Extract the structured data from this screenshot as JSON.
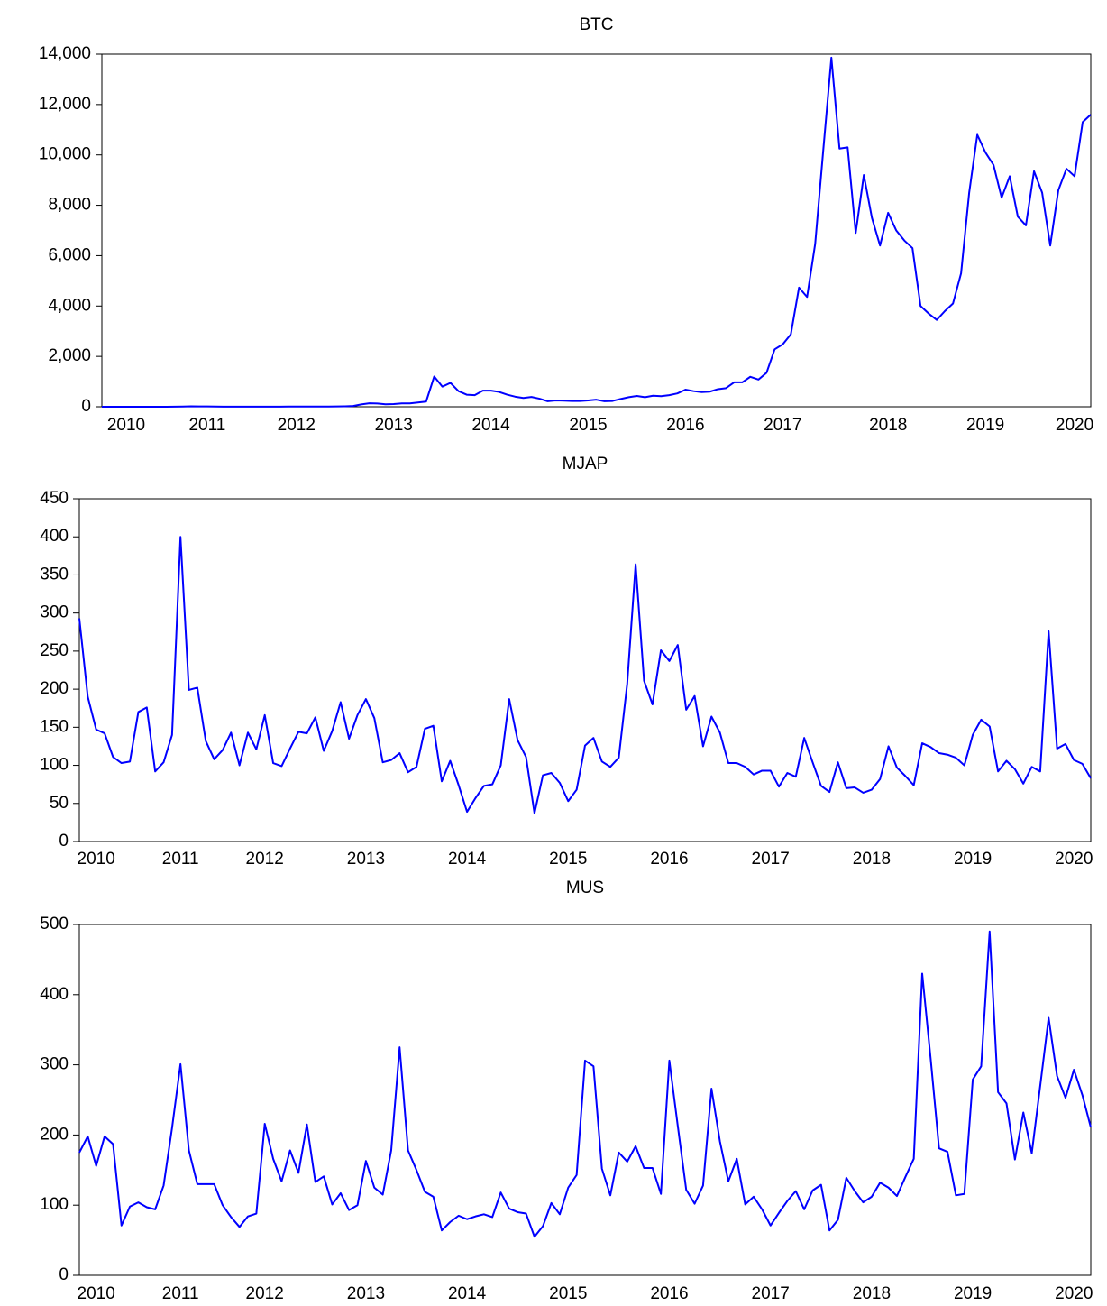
{
  "chart_data": [
    {
      "type": "line",
      "title": "BTC",
      "color": "#0000ff",
      "ylim": [
        0,
        14000
      ],
      "yticks": [
        0,
        {
          "value": 2000,
          "label": "2,000"
        },
        {
          "value": 4000,
          "label": "4,000"
        },
        {
          "value": 6000,
          "label": "6,000"
        },
        {
          "value": 8000,
          "label": "8,000"
        },
        {
          "value": 10000,
          "label": "10,000"
        },
        {
          "value": 12000,
          "label": "12,000"
        },
        {
          "value": 14000,
          "label": "14,000"
        }
      ],
      "categories": [
        null,
        null,
        null,
        "2010",
        null,
        null,
        null,
        null,
        null,
        null,
        null,
        null,
        null,
        "2011",
        null,
        null,
        null,
        null,
        null,
        null,
        null,
        null,
        null,
        null,
        "2012",
        null,
        null,
        null,
        null,
        null,
        null,
        null,
        null,
        null,
        null,
        null,
        "2013",
        null,
        null,
        null,
        null,
        null,
        null,
        null,
        null,
        null,
        null,
        null,
        "2014",
        null,
        null,
        null,
        null,
        null,
        null,
        null,
        null,
        null,
        null,
        null,
        "2015",
        null,
        null,
        null,
        null,
        null,
        null,
        null,
        null,
        null,
        null,
        null,
        "2016",
        null,
        null,
        null,
        null,
        null,
        null,
        null,
        null,
        null,
        null,
        null,
        "2017",
        null,
        null,
        null,
        null,
        null,
        null,
        null,
        null,
        null,
        null,
        null,
        null,
        "2018",
        null,
        null,
        null,
        null,
        null,
        null,
        null,
        null,
        null,
        null,
        null,
        "2019",
        null,
        null,
        null,
        null,
        null,
        null,
        null,
        null,
        null,
        null,
        "2020",
        null,
        null
      ],
      "values": [
        0.07,
        0.06,
        0.06,
        0.2,
        0.3,
        0.3,
        0.5,
        0.9,
        0.8,
        3.5,
        9,
        17,
        14,
        13,
        8,
        5,
        3,
        3,
        5,
        5,
        6,
        5,
        5,
        7,
        9,
        11,
        11,
        10,
        11,
        13,
        20,
        33,
        93,
        139,
        129,
        97,
        106,
        135,
        133,
        170,
        204,
        1200,
        800,
        950,
        620,
        480,
        460,
        640,
        640,
        590,
        480,
        400,
        350,
        390,
        320,
        220,
        250,
        240,
        230,
        230,
        250,
        280,
        220,
        230,
        310,
        380,
        430,
        380,
        440,
        420,
        460,
        530,
        680,
        620,
        580,
        600,
        700,
        740,
        970,
        970,
        1190,
        1080,
        1350,
        2280,
        2480,
        2880,
        4730,
        4360,
        6470,
        10200,
        13860,
        10250,
        10300,
        6900,
        9200,
        7500,
        6400,
        7700,
        7000,
        6600,
        6300,
        4000,
        3700,
        3450,
        3800,
        4100,
        5300,
        8500,
        10800,
        10100,
        9600,
        8300,
        9150,
        7550,
        7200,
        9350,
        8500,
        6400,
        8600,
        9450,
        9150,
        11300,
        11600
      ]
    },
    {
      "type": "line",
      "title": "MJAP",
      "color": "#0000ff",
      "ylim": [
        0,
        450
      ],
      "yticks": [
        0,
        50,
        100,
        150,
        200,
        250,
        300,
        350,
        400,
        450
      ],
      "categories": [
        null,
        null,
        "2010",
        null,
        null,
        null,
        null,
        null,
        null,
        null,
        null,
        null,
        "2011",
        null,
        null,
        null,
        null,
        null,
        null,
        null,
        null,
        null,
        "2012",
        null,
        null,
        null,
        null,
        null,
        null,
        null,
        null,
        null,
        null,
        null,
        "2013",
        null,
        null,
        null,
        null,
        null,
        null,
        null,
        null,
        null,
        null,
        null,
        "2014",
        null,
        null,
        null,
        null,
        null,
        null,
        null,
        null,
        null,
        null,
        null,
        "2015",
        null,
        null,
        null,
        null,
        null,
        null,
        null,
        null,
        null,
        null,
        null,
        "2016",
        null,
        null,
        null,
        null,
        null,
        null,
        null,
        null,
        null,
        null,
        null,
        "2017",
        null,
        null,
        null,
        null,
        null,
        null,
        null,
        null,
        null,
        null,
        null,
        "2018",
        null,
        null,
        null,
        null,
        null,
        null,
        null,
        null,
        null,
        null,
        null,
        "2019",
        null,
        null,
        null,
        null,
        null,
        null,
        null,
        null,
        null,
        null,
        null,
        "2020",
        null,
        null
      ],
      "values": [
        293,
        190,
        147,
        142,
        111,
        103,
        105,
        170,
        176,
        92,
        104,
        140,
        400,
        199,
        202,
        132,
        108,
        120,
        143,
        100,
        143,
        121,
        166,
        103,
        99,
        122,
        144,
        142,
        163,
        119,
        145,
        183,
        135,
        166,
        187,
        162,
        104,
        107,
        116,
        91,
        98,
        148,
        152,
        79,
        106,
        74,
        39,
        57,
        73,
        75,
        100,
        187,
        133,
        111,
        37,
        87,
        90,
        77,
        53,
        68,
        126,
        136,
        105,
        98,
        110,
        207,
        364,
        211,
        180,
        251,
        237,
        258,
        173,
        191,
        125,
        164,
        143,
        103,
        103,
        98,
        88,
        93,
        93,
        72,
        90,
        85,
        136,
        104,
        73,
        65,
        104,
        70,
        71,
        64,
        68,
        82,
        125,
        97,
        86,
        74,
        129,
        124,
        116,
        114,
        110,
        100,
        140,
        160,
        151,
        92,
        106,
        95,
        76,
        98,
        92,
        276,
        122,
        128,
        107,
        102,
        83
      ]
    },
    {
      "type": "line",
      "title": "MUS",
      "color": "#0000ff",
      "ylim": [
        0,
        500
      ],
      "yticks": [
        0,
        100,
        200,
        300,
        400,
        500
      ],
      "categories": [
        null,
        null,
        "2010",
        null,
        null,
        null,
        null,
        null,
        null,
        null,
        null,
        null,
        "2011",
        null,
        null,
        null,
        null,
        null,
        null,
        null,
        null,
        null,
        "2012",
        null,
        null,
        null,
        null,
        null,
        null,
        null,
        null,
        null,
        null,
        null,
        "2013",
        null,
        null,
        null,
        null,
        null,
        null,
        null,
        null,
        null,
        null,
        null,
        "2014",
        null,
        null,
        null,
        null,
        null,
        null,
        null,
        null,
        null,
        null,
        null,
        "2015",
        null,
        null,
        null,
        null,
        null,
        null,
        null,
        null,
        null,
        null,
        null,
        "2016",
        null,
        null,
        null,
        null,
        null,
        null,
        null,
        null,
        null,
        null,
        null,
        "2017",
        null,
        null,
        null,
        null,
        null,
        null,
        null,
        null,
        null,
        null,
        null,
        "2018",
        null,
        null,
        null,
        null,
        null,
        null,
        null,
        null,
        null,
        null,
        null,
        "2019",
        null,
        null,
        null,
        null,
        null,
        null,
        null,
        null,
        null,
        null,
        null,
        "2020",
        null,
        null
      ],
      "values": [
        175,
        198,
        156,
        198,
        187,
        71,
        98,
        104,
        97,
        94,
        128,
        210,
        301,
        178,
        130,
        130,
        130,
        100,
        83,
        69,
        84,
        88,
        216,
        166,
        134,
        178,
        146,
        215,
        133,
        141,
        101,
        117,
        93,
        100,
        163,
        125,
        115,
        178,
        325,
        178,
        150,
        119,
        112,
        64,
        76,
        85,
        80,
        84,
        87,
        83,
        118,
        95,
        90,
        88,
        55,
        70,
        103,
        87,
        125,
        143,
        306,
        298,
        152,
        114,
        175,
        162,
        184,
        153,
        153,
        116,
        306,
        213,
        122,
        102,
        128,
        266,
        191,
        134,
        166,
        101,
        112,
        94,
        71,
        89,
        106,
        120,
        94,
        121,
        129,
        64,
        79,
        139,
        120,
        104,
        112,
        132,
        125,
        113,
        140,
        166,
        430,
        309,
        181,
        176,
        114,
        116,
        279,
        298,
        490,
        261,
        245,
        165,
        232,
        174,
        270,
        367,
        284,
        253,
        293,
        257,
        211
      ]
    }
  ]
}
